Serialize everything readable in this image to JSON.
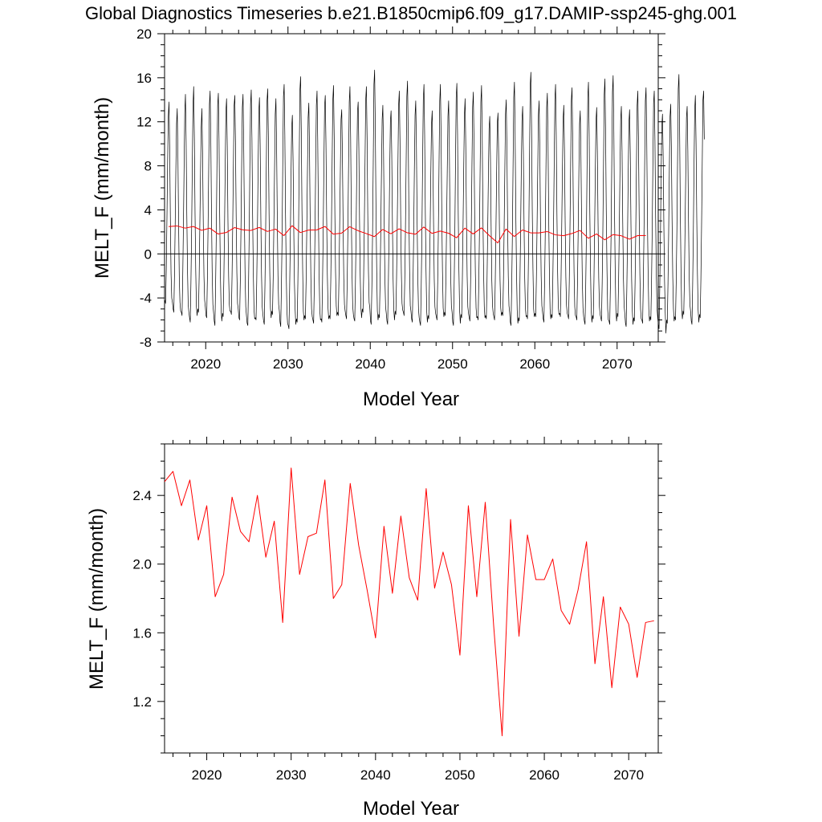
{
  "title": "Global Diagnostics Timeseries b.e21.B1850cmip6.f09_g17.DAMIP-ssp245-ghg.001",
  "colors": {
    "monthly": "#000000",
    "annual": "#ff0000",
    "zero_line": "#000000"
  },
  "chart_data": [
    {
      "type": "line",
      "xlabel": "Model Year",
      "ylabel": "MELT_F (mm/month)",
      "xlim": [
        2015,
        2075
      ],
      "ylim": [
        -8,
        20
      ],
      "x_ticks": [
        2020,
        2030,
        2040,
        2050,
        2060,
        2070
      ],
      "y_ticks": [
        -8,
        -4,
        0,
        4,
        8,
        12,
        16,
        20
      ],
      "zero_line": true,
      "grid": false,
      "series": [
        {
          "kind": "monthly",
          "color": "#000000",
          "x_start": 2015.04,
          "x_step": 0.0833,
          "values": [
            -4.2,
            -4.5,
            -1.5,
            3.2,
            8.5,
            12.5,
            13.8,
            9.5,
            3.2,
            -1.8,
            -4.0,
            -4.4,
            -5.0,
            -5.3,
            -2.0,
            2.6,
            7.6,
            11.8,
            13.2,
            9.0,
            2.8,
            -2.1,
            -4.4,
            -5.2,
            -5.3,
            -5.6,
            -2.3,
            2.4,
            7.8,
            12.8,
            14.5,
            10.2,
            3.5,
            -1.5,
            -4.6,
            -5.3,
            -5.8,
            -6.2,
            -2.6,
            2.1,
            8.1,
            13.4,
            15.2,
            10.6,
            3.6,
            -1.5,
            -4.8,
            -5.6,
            -5.0,
            -5.3,
            -2.1,
            2.7,
            7.4,
            11.5,
            13.2,
            9.1,
            2.8,
            -2.0,
            -4.2,
            -4.8,
            -5.6,
            -5.8,
            -2.3,
            2.5,
            8.2,
            13.6,
            14.8,
            10.4,
            3.5,
            -1.7,
            -4.6,
            -5.3,
            -6.1,
            -6.5,
            -2.8,
            1.9,
            8.3,
            13.5,
            14.6,
            10.2,
            3.3,
            -1.9,
            -5.0,
            -6.1,
            -5.4,
            -5.7,
            -2.4,
            2.3,
            7.9,
            12.9,
            14.1,
            9.8,
            3.1,
            -2.0,
            -4.6,
            -5.2,
            -5.2,
            -5.5,
            -2.0,
            2.8,
            8.3,
            13.5,
            14.4,
            10.1,
            3.4,
            -1.7,
            -4.5,
            -5.0,
            -5.8,
            -6.0,
            -2.6,
            2.2,
            8.0,
            13.3,
            14.5,
            10.0,
            3.3,
            -1.9,
            -4.8,
            -5.6,
            -6.3,
            -6.5,
            -3.0,
            1.8,
            8.2,
            13.6,
            14.9,
            10.5,
            3.5,
            -1.6,
            -5.0,
            -5.9,
            -5.8,
            -6.0,
            -2.5,
            2.2,
            7.8,
            12.9,
            14.2,
            9.9,
            3.2,
            -1.9,
            -4.8,
            -5.5,
            -6.1,
            -6.4,
            -2.8,
            2.0,
            8.2,
            13.9,
            15.0,
            10.6,
            3.6,
            -1.6,
            -4.9,
            -5.8,
            -5.2,
            -5.5,
            -2.2,
            2.6,
            7.7,
            12.7,
            14.1,
            9.8,
            3.1,
            -2.0,
            -4.6,
            -5.2,
            -6.2,
            -6.6,
            -3.0,
            1.6,
            8.4,
            14.3,
            15.4,
            10.8,
            3.7,
            -1.5,
            -5.1,
            -6.3,
            -6.5,
            -6.8,
            -3.2,
            1.2,
            7.0,
            11.5,
            12.6,
            8.6,
            2.4,
            -2.6,
            -5.0,
            -6.4,
            -5.9,
            -6.2,
            -2.7,
            2.1,
            8.6,
            14.9,
            16.1,
            11.2,
            3.9,
            -1.4,
            -5.2,
            -6.0,
            -5.6,
            -5.9,
            -2.6,
            2.1,
            7.6,
            12.4,
            13.7,
            9.5,
            2.9,
            -2.2,
            -5.0,
            -5.7,
            -6.0,
            -6.3,
            -2.9,
            1.9,
            8.0,
            13.5,
            14.8,
            10.3,
            3.4,
            -1.8,
            -5.1,
            -6.0,
            -5.9,
            -6.2,
            -2.6,
            2.2,
            8.1,
            13.4,
            14.4,
            10.1,
            3.4,
            -1.8,
            -4.9,
            -5.9,
            -5.6,
            -5.9,
            -2.5,
            2.3,
            8.3,
            14.0,
            15.3,
            10.7,
            3.6,
            -1.6,
            -4.7,
            -5.6,
            -5.3,
            -5.6,
            -2.2,
            2.6,
            7.6,
            12.2,
            13.1,
            9.1,
            2.8,
            -2.2,
            -4.6,
            -5.2,
            -5.6,
            -5.9,
            -2.5,
            2.2,
            8.2,
            13.8,
            15.2,
            10.6,
            3.6,
            -1.6,
            -4.7,
            -5.5,
            -5.9,
            -6.1,
            -2.7,
            2.1,
            8.0,
            12.9,
            13.8,
            9.6,
            3.0,
            -2.0,
            -4.9,
            -5.8,
            -5.0,
            -5.3,
            -2.0,
            2.7,
            8.3,
            14.0,
            15.2,
            10.6,
            3.6,
            -1.6,
            -4.4,
            -4.9,
            -6.1,
            -6.4,
            -2.9,
            1.8,
            8.3,
            15.4,
            16.7,
            11.6,
            4.0,
            -1.3,
            -5.2,
            -6.0,
            -5.5,
            -5.8,
            -2.5,
            2.2,
            7.5,
            12.2,
            13.5,
            9.4,
            2.9,
            -2.2,
            -4.8,
            -5.4,
            -6.1,
            -6.4,
            -2.9,
            1.8,
            7.5,
            12.0,
            13.0,
            9.0,
            2.7,
            -2.3,
            -5.1,
            -6.0,
            -5.2,
            -5.5,
            -2.2,
            2.6,
            8.1,
            13.5,
            14.8,
            10.4,
            3.5,
            -1.7,
            -4.5,
            -5.1,
            -5.3,
            -5.6,
            -2.3,
            2.4,
            8.3,
            14.3,
            15.7,
            11.0,
            3.8,
            -1.4,
            -4.7,
            -5.2,
            -5.9,
            -6.2,
            -2.8,
            1.9,
            7.7,
            12.6,
            13.9,
            9.7,
            3.0,
            -2.1,
            -5.0,
            -5.8,
            -6.2,
            -6.5,
            -3.0,
            1.7,
            8.2,
            14.0,
            15.4,
            10.8,
            3.7,
            -1.5,
            -5.2,
            -6.2,
            -5.6,
            -5.9,
            -2.5,
            2.3,
            7.3,
            11.8,
            13.0,
            9.0,
            2.7,
            -2.3,
            -4.8,
            -5.4,
            -5.7,
            -6.0,
            -2.6,
            2.1,
            8.2,
            13.9,
            15.4,
            10.7,
            3.6,
            -1.6,
            -4.9,
            -5.7,
            -5.3,
            -5.6,
            -2.2,
            2.6,
            7.7,
            12.5,
            13.9,
            9.6,
            3.0,
            -2.0,
            -4.7,
            -5.3,
            -6.2,
            -6.5,
            -3.0,
            1.7,
            8.3,
            14.2,
            15.5,
            10.9,
            3.7,
            -1.5,
            -5.1,
            -6.3,
            -5.5,
            -5.8,
            -2.4,
            2.4,
            7.7,
            12.6,
            14.1,
            9.8,
            3.1,
            -2.0,
            -4.8,
            -5.4,
            -5.8,
            -6.1,
            -2.6,
            2.2,
            7.9,
            13.3,
            14.7,
            10.2,
            3.4,
            -1.8,
            -4.9,
            -5.8,
            -5.7,
            -6.0,
            -2.6,
            2.2,
            8.0,
            13.8,
            15.3,
            10.7,
            3.6,
            -1.6,
            -4.8,
            -5.8,
            -5.6,
            -5.9,
            -2.5,
            2.2,
            7.1,
            11.4,
            12.5,
            8.7,
            2.5,
            -2.4,
            -4.7,
            -5.4,
            -5.7,
            -6.0,
            -2.6,
            2.1,
            7.3,
            11.9,
            12.8,
            8.9,
            2.7,
            -2.4,
            -4.9,
            -5.6,
            -5.3,
            -5.6,
            -2.3,
            2.5,
            7.7,
            12.7,
            14.0,
            9.7,
            3.0,
            -2.0,
            -4.7,
            -5.3,
            -6.2,
            -6.5,
            -3.0,
            1.7,
            8.1,
            14.2,
            15.6,
            10.9,
            3.7,
            -1.5,
            -5.1,
            -6.3,
            -5.8,
            -6.1,
            -2.7,
            2.1,
            7.6,
            12.1,
            13.4,
            9.3,
            2.9,
            -2.2,
            -4.9,
            -5.7,
            -5.6,
            -5.9,
            -2.5,
            2.3,
            8.7,
            15.3,
            16.5,
            11.5,
            4.0,
            -1.3,
            -5.0,
            -5.7,
            -5.4,
            -5.7,
            -2.3,
            2.5,
            7.7,
            12.6,
            13.9,
            9.6,
            3.0,
            -2.0,
            -4.7,
            -5.3,
            -5.9,
            -6.2,
            -2.7,
            2.0,
            7.9,
            13.3,
            14.6,
            10.2,
            3.3,
            -1.8,
            -5.0,
            -5.9,
            -5.5,
            -5.8,
            -2.4,
            2.4,
            8.2,
            14.0,
            15.4,
            10.8,
            3.6,
            -1.6,
            -4.8,
            -5.5,
            -5.4,
            -5.7,
            -2.3,
            2.5,
            7.6,
            12.2,
            13.5,
            9.4,
            2.9,
            -2.1,
            -4.7,
            -5.4,
            -5.6,
            -5.9,
            -2.5,
            2.3,
            8.1,
            13.9,
            15.1,
            10.5,
            3.5,
            -1.7,
            -4.8,
            -5.6,
            -5.7,
            -6.0,
            -2.6,
            2.1,
            7.4,
            11.8,
            13.0,
            9.0,
            2.7,
            -2.3,
            -4.9,
            -5.7,
            -6.1,
            -6.4,
            -2.9,
            1.8,
            8.3,
            14.2,
            15.6,
            10.9,
            3.7,
            -1.5,
            -5.1,
            -6.2,
            -5.6,
            -5.9,
            -2.5,
            2.3,
            7.5,
            12.1,
            13.3,
            9.2,
            2.8,
            -2.2,
            -4.8,
            -5.5,
            -5.8,
            -6.1,
            -2.7,
            2.1,
            8.4,
            14.5,
            15.9,
            11.1,
            3.8,
            -1.4,
            -5.0,
            -6.0,
            -6.1,
            -6.4,
            -2.9,
            1.8,
            8.2,
            14.7,
            16.2,
            11.3,
            3.9,
            -1.4,
            -5.1,
            -6.1,
            -5.4,
            -5.7,
            -2.3,
            2.4,
            7.6,
            12.2,
            13.4,
            9.3,
            2.9,
            -2.1,
            -4.7,
            -5.4,
            -6.3,
            -6.6,
            -3.1,
            1.6,
            7.4,
            11.9,
            13.1,
            9.1,
            2.7,
            -2.3,
            -5.2,
            -6.4,
            -5.8,
            -6.1,
            -2.7,
            2.0,
            8.0,
            13.5,
            14.8,
            10.3,
            3.4,
            -1.8,
            -5.0,
            -5.9,
            -6.0,
            -6.3,
            -2.8,
            1.9,
            8.2,
            13.9,
            15.1,
            10.6,
            3.5,
            -1.6,
            -5.0,
            -6.1,
            -5.7,
            -6.0,
            -2.6,
            2.2,
            8.1,
            13.7,
            14.8,
            10.3,
            3.4,
            -1.8,
            -4.9,
            -5.8,
            -6.4,
            -6.8,
            -3.2,
            1.5,
            7.3,
            11.6,
            12.7,
            8.8,
            2.6,
            -2.4,
            -5.3,
            -7.2,
            -6.0,
            -6.3,
            -2.8,
            1.9,
            7.6,
            12.5,
            13.6,
            9.5,
            3.0,
            -2.1,
            -5.0,
            -6.1,
            -5.7,
            -6.0,
            -2.6,
            2.1,
            8.6,
            15.0,
            16.3,
            11.4,
            3.9,
            -1.3,
            -5.0,
            -5.9,
            -5.2,
            -5.5,
            -2.2,
            2.6,
            7.6,
            12.4,
            13.4,
            9.3,
            2.9,
            -2.1,
            -4.6,
            -5.2,
            -6.1,
            -6.4,
            -2.9,
            1.8,
            7.9,
            13.1,
            14.4,
            10.0,
            3.3,
            -1.8,
            -5.1,
            -6.2,
            -5.5,
            -5.8,
            -2.4,
            2.4,
            8.2,
            14.0,
            14.8,
            10.4
          ]
        },
        {
          "kind": "annual",
          "color": "#ff0000",
          "x": [
            2015.5,
            2016.5,
            2017.5,
            2018.5,
            2019.5,
            2020.5,
            2021.5,
            2022.5,
            2023.5,
            2024.5,
            2025.5,
            2026.5,
            2027.5,
            2028.5,
            2029.5,
            2030.5,
            2031.5,
            2032.5,
            2033.5,
            2034.5,
            2035.5,
            2036.5,
            2037.5,
            2038.5,
            2039.5,
            2040.5,
            2041.5,
            2042.5,
            2043.5,
            2044.5,
            2045.5,
            2046.5,
            2047.5,
            2048.5,
            2049.5,
            2050.5,
            2051.5,
            2052.5,
            2053.5,
            2054.5,
            2055.5,
            2056.5,
            2057.5,
            2058.5,
            2059.5,
            2060.5,
            2061.5,
            2062.5,
            2063.5,
            2064.5,
            2065.5,
            2066.5,
            2067.5,
            2068.5,
            2069.5,
            2070.5,
            2071.5,
            2072.5,
            2073.5
          ],
          "values": [
            2.48,
            2.54,
            2.34,
            2.49,
            2.14,
            2.34,
            1.81,
            1.94,
            2.39,
            2.19,
            2.13,
            2.4,
            2.04,
            2.25,
            1.66,
            2.56,
            1.94,
            2.16,
            2.18,
            2.49,
            1.8,
            1.88,
            2.47,
            2.11,
            1.85,
            1.57,
            2.22,
            1.83,
            2.28,
            1.92,
            1.79,
            2.44,
            1.86,
            2.07,
            1.88,
            1.47,
            2.34,
            1.81,
            2.36,
            1.64,
            1.0,
            2.26,
            1.58,
            2.17,
            1.91,
            1.91,
            2.03,
            1.73,
            1.65,
            1.85,
            2.13,
            1.42,
            1.81,
            1.28,
            1.75,
            1.65,
            1.34,
            1.66,
            1.67
          ]
        }
      ]
    },
    {
      "type": "line",
      "xlabel": "Model Year",
      "ylabel": "MELT_F (mm/month)",
      "xlim": [
        2015,
        2073.5
      ],
      "ylim": [
        0.9,
        2.7
      ],
      "x_ticks": [
        2020,
        2030,
        2040,
        2050,
        2060,
        2070
      ],
      "y_ticks": [
        1.2,
        1.6,
        2.0,
        2.4
      ],
      "grid": false,
      "series": [
        {
          "kind": "annual",
          "color": "#ff0000",
          "x": [
            2015,
            2016,
            2017,
            2018,
            2019,
            2020,
            2021,
            2022,
            2023,
            2024,
            2025,
            2026,
            2027,
            2028,
            2029,
            2030,
            2031,
            2032,
            2033,
            2034,
            2035,
            2036,
            2037,
            2038,
            2039,
            2040,
            2041,
            2042,
            2043,
            2044,
            2045,
            2046,
            2047,
            2048,
            2049,
            2050,
            2051,
            2052,
            2053,
            2054,
            2055,
            2056,
            2057,
            2058,
            2059,
            2060,
            2061,
            2062,
            2063,
            2064,
            2065,
            2066,
            2067,
            2068,
            2069,
            2070,
            2071,
            2072,
            2073
          ],
          "values": [
            2.48,
            2.54,
            2.34,
            2.49,
            2.14,
            2.34,
            1.81,
            1.94,
            2.39,
            2.19,
            2.13,
            2.4,
            2.04,
            2.25,
            1.66,
            2.56,
            1.94,
            2.16,
            2.18,
            2.49,
            1.8,
            1.88,
            2.47,
            2.11,
            1.85,
            1.57,
            2.22,
            1.83,
            2.28,
            1.92,
            1.79,
            2.44,
            1.86,
            2.07,
            1.88,
            1.47,
            2.34,
            1.81,
            2.36,
            1.64,
            1.0,
            2.26,
            1.58,
            2.17,
            1.91,
            1.91,
            2.03,
            1.73,
            1.65,
            1.85,
            2.13,
            1.42,
            1.81,
            1.28,
            1.75,
            1.65,
            1.34,
            1.66,
            1.67
          ]
        }
      ]
    }
  ]
}
